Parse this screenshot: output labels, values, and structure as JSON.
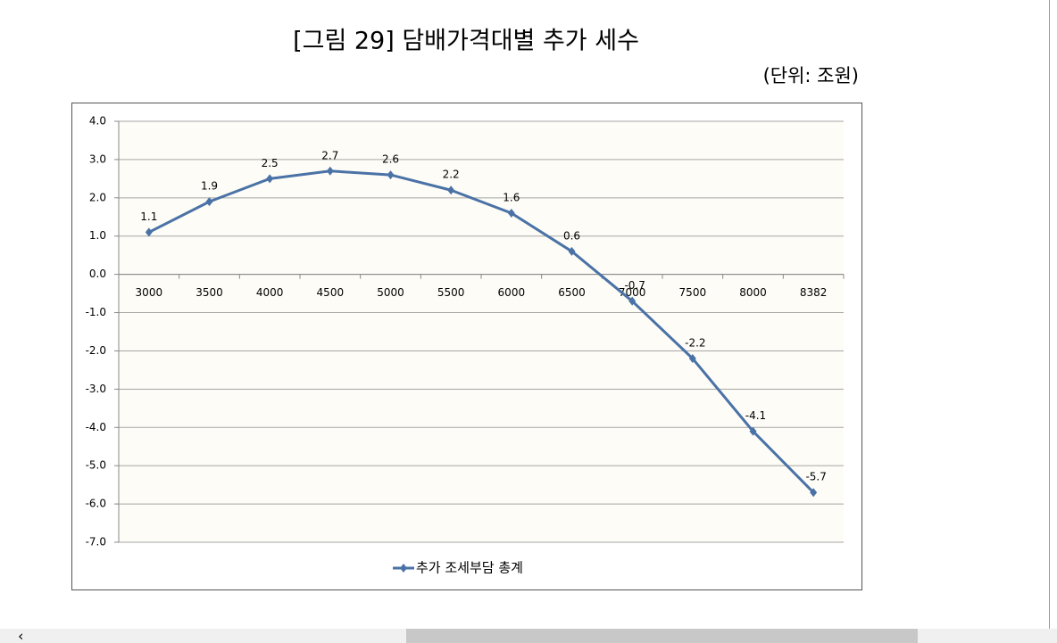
{
  "chart_data": {
    "type": "line",
    "title": "[그림 29] 담배가격대별 추가 세수",
    "subtitle": "(단위: 조원)",
    "categories": [
      "3000",
      "3500",
      "4000",
      "4500",
      "5000",
      "5500",
      "6000",
      "6500",
      "7000",
      "7500",
      "8000",
      "8382"
    ],
    "series": [
      {
        "name": "추가 조세부담 총계",
        "color": "#4a72a6",
        "values": [
          1.1,
          1.9,
          2.5,
          2.7,
          2.6,
          2.2,
          1.6,
          0.6,
          -0.7,
          -2.2,
          -4.1,
          -5.7
        ]
      }
    ],
    "ylim": [
      -7,
      4
    ],
    "yticks": [
      {
        "value": 4,
        "label": "4.0"
      },
      {
        "value": 3,
        "label": "3.0"
      },
      {
        "value": 2,
        "label": "2.0"
      },
      {
        "value": 1,
        "label": "1.0"
      },
      {
        "value": 0,
        "label": "0.0"
      },
      {
        "value": -1,
        "label": "-1.0"
      },
      {
        "value": -2,
        "label": "-2.0"
      },
      {
        "value": -3,
        "label": "-3.0"
      },
      {
        "value": -4,
        "label": "-4.0"
      },
      {
        "value": -5,
        "label": "-5.0"
      },
      {
        "value": -6,
        "label": "-6.0"
      },
      {
        "value": -7,
        "label": "-7.0"
      }
    ],
    "grid": true,
    "legend": "bottom"
  }
}
